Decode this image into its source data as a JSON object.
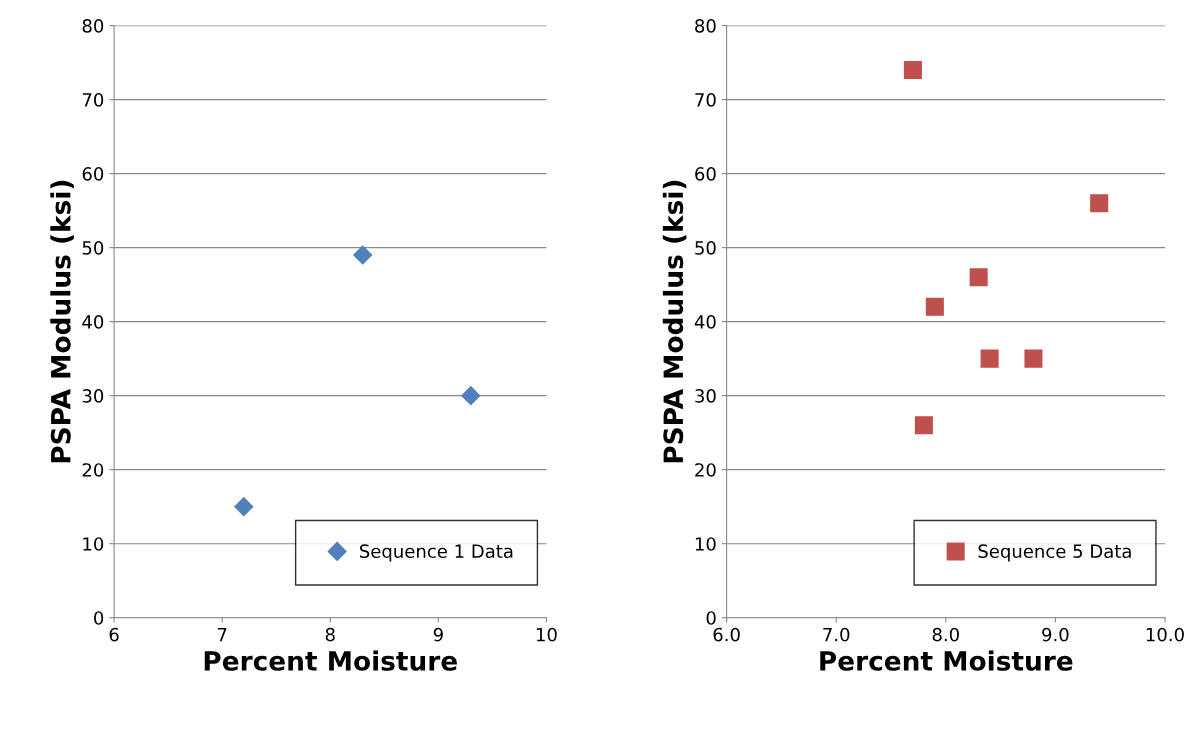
{
  "chart_data": [
    {
      "type": "scatter",
      "xlabel": "Percent Moisture",
      "ylabel": "PSPA Modulus (ksi)",
      "xlim": [
        6,
        10
      ],
      "xticks": [
        6,
        7,
        8,
        9,
        10
      ],
      "ylim": [
        0,
        80
      ],
      "yticks": [
        0,
        10,
        20,
        30,
        40,
        50,
        60,
        70,
        80
      ],
      "grid": "y",
      "legend": "bottom right",
      "marker": "diamond",
      "series": [
        {
          "name": "Sequence 1 Data",
          "color": "#4f81bd",
          "x": [
            7.2,
            8.3,
            9.3
          ],
          "values": [
            15,
            49,
            30
          ]
        }
      ]
    },
    {
      "type": "scatter",
      "xlabel": "Percent Moisture",
      "ylabel": "PSPA Modulus (ksi)",
      "xlim": [
        6,
        10
      ],
      "xticks": [
        {
          "value": 6,
          "label": "6.0"
        },
        {
          "value": 7,
          "label": "7.0"
        },
        {
          "value": 8,
          "label": "8.0"
        },
        {
          "value": 9,
          "label": "9.0"
        },
        {
          "value": 10,
          "label": "10.0"
        }
      ],
      "ylim": [
        0,
        80
      ],
      "yticks": [
        0,
        10,
        20,
        30,
        40,
        50,
        60,
        70,
        80
      ],
      "grid": "y",
      "legend": "bottom right",
      "marker": "square",
      "series": [
        {
          "name": "Sequence 5 Data",
          "color": "#c0504d",
          "x": [
            7.7,
            9.4,
            8.3,
            7.9,
            8.4,
            8.8,
            7.8
          ],
          "values": [
            74,
            56,
            46,
            42,
            35,
            35,
            26
          ]
        }
      ]
    }
  ]
}
